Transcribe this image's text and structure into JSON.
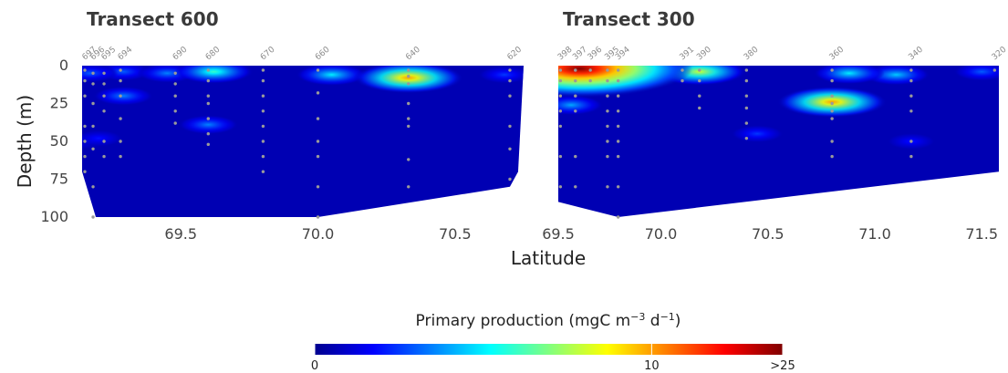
{
  "chart_data": {
    "type": "heatmap",
    "ylabel": "Depth (m)",
    "xlabel": "Latitude",
    "colorbar": {
      "title": "Primary production (mgC m",
      "title_sup1": "−3",
      "title_mid": " d",
      "title_sup2": "−1",
      "title_end": ")",
      "ticks": [
        {
          "value": 0,
          "label": "0"
        },
        {
          "value": 10,
          "label": "10"
        },
        {
          "value": 25,
          "label": ">25"
        }
      ],
      "colormap": [
        "#00008f",
        "#0000ff",
        "#0080ff",
        "#00ffff",
        "#80ff80",
        "#ffff00",
        "#ff8000",
        "#ff0000",
        "#800000"
      ]
    },
    "yticks": [
      {
        "value": 0,
        "label": "0"
      },
      {
        "value": 25,
        "label": "25"
      },
      {
        "value": 50,
        "label": "50"
      },
      {
        "value": 75,
        "label": "75"
      },
      {
        "value": 100,
        "label": "100"
      }
    ],
    "panels": [
      {
        "title": "Transect 600",
        "xlim": [
          69.14,
          70.75
        ],
        "ylim": [
          0,
          100
        ],
        "xticks": [
          {
            "value": 69.5,
            "label": "69.5"
          },
          {
            "value": 70.0,
            "label": "70.0"
          },
          {
            "value": 70.5,
            "label": "70.5"
          }
        ],
        "right_tick": {
          "value": 69.5,
          "label": "69.5"
        },
        "bottom_boundary": [
          [
            69.14,
            70
          ],
          [
            69.19,
            100
          ],
          [
            70.0,
            100
          ],
          [
            70.7,
            80
          ],
          [
            70.73,
            70
          ]
        ],
        "stations": [
          {
            "name": "697",
            "lat": 69.15,
            "depths": [
              3,
              10,
              20,
              40,
              50,
              60,
              70
            ]
          },
          {
            "name": "696",
            "lat": 69.18,
            "depths": [
              5,
              12,
              25,
              40,
              55,
              80,
              100
            ]
          },
          {
            "name": "695",
            "lat": 69.22,
            "depths": [
              5,
              12,
              20,
              30,
              50,
              60
            ]
          },
          {
            "name": "694",
            "lat": 69.28,
            "depths": [
              3,
              10,
              20,
              35,
              50,
              60
            ]
          },
          {
            "name": "690",
            "lat": 69.48,
            "depths": [
              5,
              12,
              20,
              30,
              38
            ]
          },
          {
            "name": "680",
            "lat": 69.6,
            "depths": [
              3,
              10,
              20,
              25,
              35,
              45,
              52
            ]
          },
          {
            "name": "670",
            "lat": 69.8,
            "depths": [
              3,
              10,
              20,
              30,
              40,
              50,
              60,
              70
            ]
          },
          {
            "name": "660",
            "lat": 70.0,
            "depths": [
              3,
              18,
              35,
              50,
              60,
              80,
              100
            ]
          },
          {
            "name": "640",
            "lat": 70.33,
            "depths": [
              3,
              7,
              12,
              25,
              35,
              40,
              62,
              80
            ]
          },
          {
            "name": "620",
            "lat": 70.7,
            "depths": [
              3,
              10,
              20,
              40,
              55,
              75
            ]
          }
        ],
        "values": [
          {
            "lat": 70.33,
            "depth": 8,
            "pp": 10
          },
          {
            "lat": 70.05,
            "depth": 6,
            "pp": 5
          },
          {
            "lat": 69.62,
            "depth": 4,
            "pp": 6
          },
          {
            "lat": 69.45,
            "depth": 5,
            "pp": 3.5
          },
          {
            "lat": 69.29,
            "depth": 4,
            "pp": 3
          },
          {
            "lat": 69.17,
            "depth": 5,
            "pp": 3
          },
          {
            "lat": 69.29,
            "depth": 20,
            "pp": 3.5
          },
          {
            "lat": 69.6,
            "depth": 39,
            "pp": 3.5
          },
          {
            "lat": 69.2,
            "depth": 48,
            "pp": 2
          },
          {
            "lat": 69.15,
            "depth": 50,
            "pp": 1.5
          },
          {
            "lat": 70.68,
            "depth": 6,
            "pp": 2.5
          }
        ]
      },
      {
        "title": "Transect 300",
        "xlim": [
          69.52,
          71.58
        ],
        "ylim": [
          0,
          100
        ],
        "xticks": [
          {
            "value": 70.0,
            "label": "70.0"
          },
          {
            "value": 70.5,
            "label": "70.5"
          },
          {
            "value": 71.0,
            "label": "71.0"
          },
          {
            "value": 71.5,
            "label": "71.5"
          }
        ],
        "bottom_boundary": [
          [
            69.52,
            90
          ],
          [
            69.8,
            100
          ],
          [
            71.58,
            70
          ]
        ],
        "stations": [
          {
            "name": "398",
            "lat": 69.53,
            "depths": [
              3,
              10,
              20,
              30,
              40,
              60,
              80
            ]
          },
          {
            "name": "397",
            "lat": 69.6,
            "depths": [
              3,
              10,
              20,
              30,
              60,
              80
            ]
          },
          {
            "name": "396",
            "lat": 69.67,
            "depths": [
              3,
              10
            ]
          },
          {
            "name": "395",
            "lat": 69.75,
            "depths": [
              3,
              10,
              20,
              30,
              40,
              50,
              60,
              80
            ]
          },
          {
            "name": "394",
            "lat": 69.8,
            "depths": [
              3,
              10,
              20,
              30,
              40,
              50,
              60,
              80,
              100
            ]
          },
          {
            "name": "391",
            "lat": 70.1,
            "depths": [
              3,
              10
            ]
          },
          {
            "name": "390",
            "lat": 70.18,
            "depths": [
              3,
              10,
              20,
              28
            ]
          },
          {
            "name": "380",
            "lat": 70.4,
            "depths": [
              3,
              10,
              20,
              28,
              38,
              48
            ]
          },
          {
            "name": "360",
            "lat": 70.8,
            "depths": [
              3,
              10,
              20,
              25,
              30,
              35,
              50,
              60
            ]
          },
          {
            "name": "340",
            "lat": 71.17,
            "depths": [
              3,
              10,
              20,
              30,
              50,
              60
            ]
          },
          {
            "name": "320",
            "lat": 71.56,
            "depths": [
              3
            ]
          }
        ],
        "values": [
          {
            "lat": 69.62,
            "depth": 2,
            "pp": 25
          },
          {
            "lat": 69.68,
            "depth": 2,
            "pp": 22
          },
          {
            "lat": 69.56,
            "depth": 3,
            "pp": 18
          },
          {
            "lat": 69.74,
            "depth": 3,
            "pp": 12
          },
          {
            "lat": 69.58,
            "depth": 26,
            "pp": 4
          },
          {
            "lat": 70.18,
            "depth": 4,
            "pp": 8
          },
          {
            "lat": 70.8,
            "depth": 24,
            "pp": 10
          },
          {
            "lat": 70.88,
            "depth": 5,
            "pp": 5
          },
          {
            "lat": 71.1,
            "depth": 6,
            "pp": 4.5
          },
          {
            "lat": 70.45,
            "depth": 45,
            "pp": 2.5
          },
          {
            "lat": 71.17,
            "depth": 50,
            "pp": 2
          },
          {
            "lat": 71.5,
            "depth": 4,
            "pp": 3
          }
        ]
      }
    ]
  }
}
